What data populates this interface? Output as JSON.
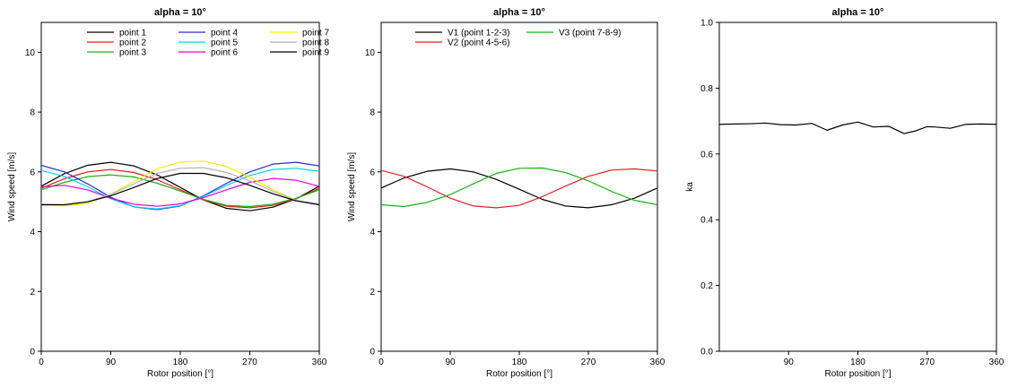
{
  "chart_data": [
    {
      "type": "line",
      "title": "alpha = 10°",
      "xlabel": "Rotor position [°]",
      "ylabel": "Wind speed [m/s]",
      "xlim": [
        0,
        360
      ],
      "ylim": [
        0,
        11
      ],
      "xticks": [
        0,
        90,
        180,
        270,
        360
      ],
      "yticks": [
        0,
        2,
        4,
        6,
        8,
        10
      ],
      "grid": false,
      "legend_position": "top",
      "legend_columns": 3,
      "x": [
        0,
        30,
        60,
        90,
        120,
        150,
        180,
        210,
        240,
        270,
        300,
        330,
        360
      ],
      "series": [
        {
          "name": "point 1",
          "color": "#000000",
          "values": [
            5.52,
            5.94,
            6.22,
            6.32,
            6.2,
            5.9,
            5.48,
            5.06,
            4.78,
            4.7,
            4.82,
            5.1,
            5.52
          ]
        },
        {
          "name": "point 2",
          "color": "#ee1c1c",
          "values": [
            5.45,
            5.77,
            6.0,
            6.08,
            5.98,
            5.74,
            5.4,
            5.06,
            4.85,
            4.8,
            4.88,
            5.1,
            5.45
          ]
        },
        {
          "name": "point 3",
          "color": "#14b414",
          "values": [
            5.4,
            5.65,
            5.84,
            5.9,
            5.83,
            5.62,
            5.36,
            5.08,
            4.88,
            4.84,
            4.92,
            5.12,
            5.4
          ]
        },
        {
          "name": "point 4",
          "color": "#2a2ad8",
          "values": [
            6.22,
            6.0,
            5.6,
            5.15,
            4.83,
            4.74,
            4.86,
            5.2,
            5.62,
            6.0,
            6.26,
            6.32,
            6.2
          ]
        },
        {
          "name": "point 5",
          "color": "#00d2e6",
          "values": [
            6.05,
            5.85,
            5.5,
            5.1,
            4.83,
            4.76,
            4.87,
            5.18,
            5.55,
            5.88,
            6.08,
            6.12,
            6.02
          ]
        },
        {
          "name": "point 6",
          "color": "#e000e0",
          "values": [
            5.5,
            5.55,
            5.4,
            5.12,
            4.92,
            4.85,
            4.93,
            5.14,
            5.4,
            5.65,
            5.78,
            5.72,
            5.52
          ]
        },
        {
          "name": "point 7",
          "color": "#f0f000",
          "values": [
            4.9,
            4.86,
            4.95,
            5.25,
            5.68,
            6.1,
            6.33,
            6.36,
            6.18,
            5.82,
            5.4,
            5.05,
            4.9
          ]
        },
        {
          "name": "point 8",
          "color": "#b4b4b4",
          "values": [
            4.92,
            4.9,
            5.0,
            5.25,
            5.6,
            5.95,
            6.12,
            6.14,
            5.98,
            5.7,
            5.35,
            5.05,
            4.92
          ]
        },
        {
          "name": "point 9",
          "color": "#000000",
          "values": [
            4.9,
            4.9,
            5.0,
            5.2,
            5.48,
            5.78,
            5.95,
            5.95,
            5.8,
            5.55,
            5.27,
            5.03,
            4.9
          ]
        }
      ]
    },
    {
      "type": "line",
      "title": "alpha = 10°",
      "xlabel": "Rotor position [°]",
      "ylabel": "Wind speed [m/s]",
      "xlim": [
        0,
        360
      ],
      "ylim": [
        0,
        11
      ],
      "xticks": [
        0,
        90,
        180,
        270,
        360
      ],
      "yticks": [
        0,
        2,
        4,
        6,
        8,
        10
      ],
      "grid": false,
      "legend_position": "top",
      "legend_columns": 2,
      "x": [
        0,
        30,
        60,
        90,
        120,
        150,
        180,
        210,
        240,
        270,
        300,
        330,
        360
      ],
      "series": [
        {
          "name": "V1 (point 1-2-3)",
          "color": "#000000",
          "values": [
            5.46,
            5.8,
            6.02,
            6.1,
            6.0,
            5.75,
            5.42,
            5.08,
            4.86,
            4.8,
            4.9,
            5.12,
            5.46
          ]
        },
        {
          "name": "V2 (point 4-5-6)",
          "color": "#ee1c1c",
          "values": [
            6.05,
            5.85,
            5.5,
            5.12,
            4.86,
            4.8,
            4.88,
            5.17,
            5.52,
            5.85,
            6.06,
            6.1,
            6.03
          ]
        },
        {
          "name": "V3 (point 7-8-9)",
          "color": "#14b414",
          "values": [
            4.9,
            4.84,
            4.98,
            5.24,
            5.6,
            5.95,
            6.12,
            6.13,
            5.98,
            5.7,
            5.35,
            5.05,
            4.9
          ]
        }
      ]
    },
    {
      "type": "line",
      "title": "alpha = 10°",
      "xlabel": "Rotor position [°]",
      "ylabel": "ka",
      "xlim": [
        0,
        360
      ],
      "ylim": [
        0,
        1
      ],
      "xticks": [
        90,
        180,
        270,
        360
      ],
      "yticks": [
        0.0,
        0.2,
        0.4,
        0.6,
        0.8,
        1.0
      ],
      "ytick_labels": [
        "0.0",
        "0.2",
        "0.4",
        "0.6",
        "0.8",
        "1.0"
      ],
      "grid": false,
      "x": [
        0,
        20,
        40,
        60,
        80,
        100,
        120,
        140,
        160,
        180,
        200,
        220,
        240,
        255,
        270,
        280,
        300,
        320,
        340,
        360
      ],
      "series": [
        {
          "color": "#000000",
          "values": [
            0.69,
            0.691,
            0.692,
            0.694,
            0.689,
            0.688,
            0.693,
            0.672,
            0.688,
            0.697,
            0.682,
            0.684,
            0.662,
            0.67,
            0.683,
            0.682,
            0.678,
            0.69,
            0.691,
            0.69
          ]
        }
      ]
    }
  ]
}
